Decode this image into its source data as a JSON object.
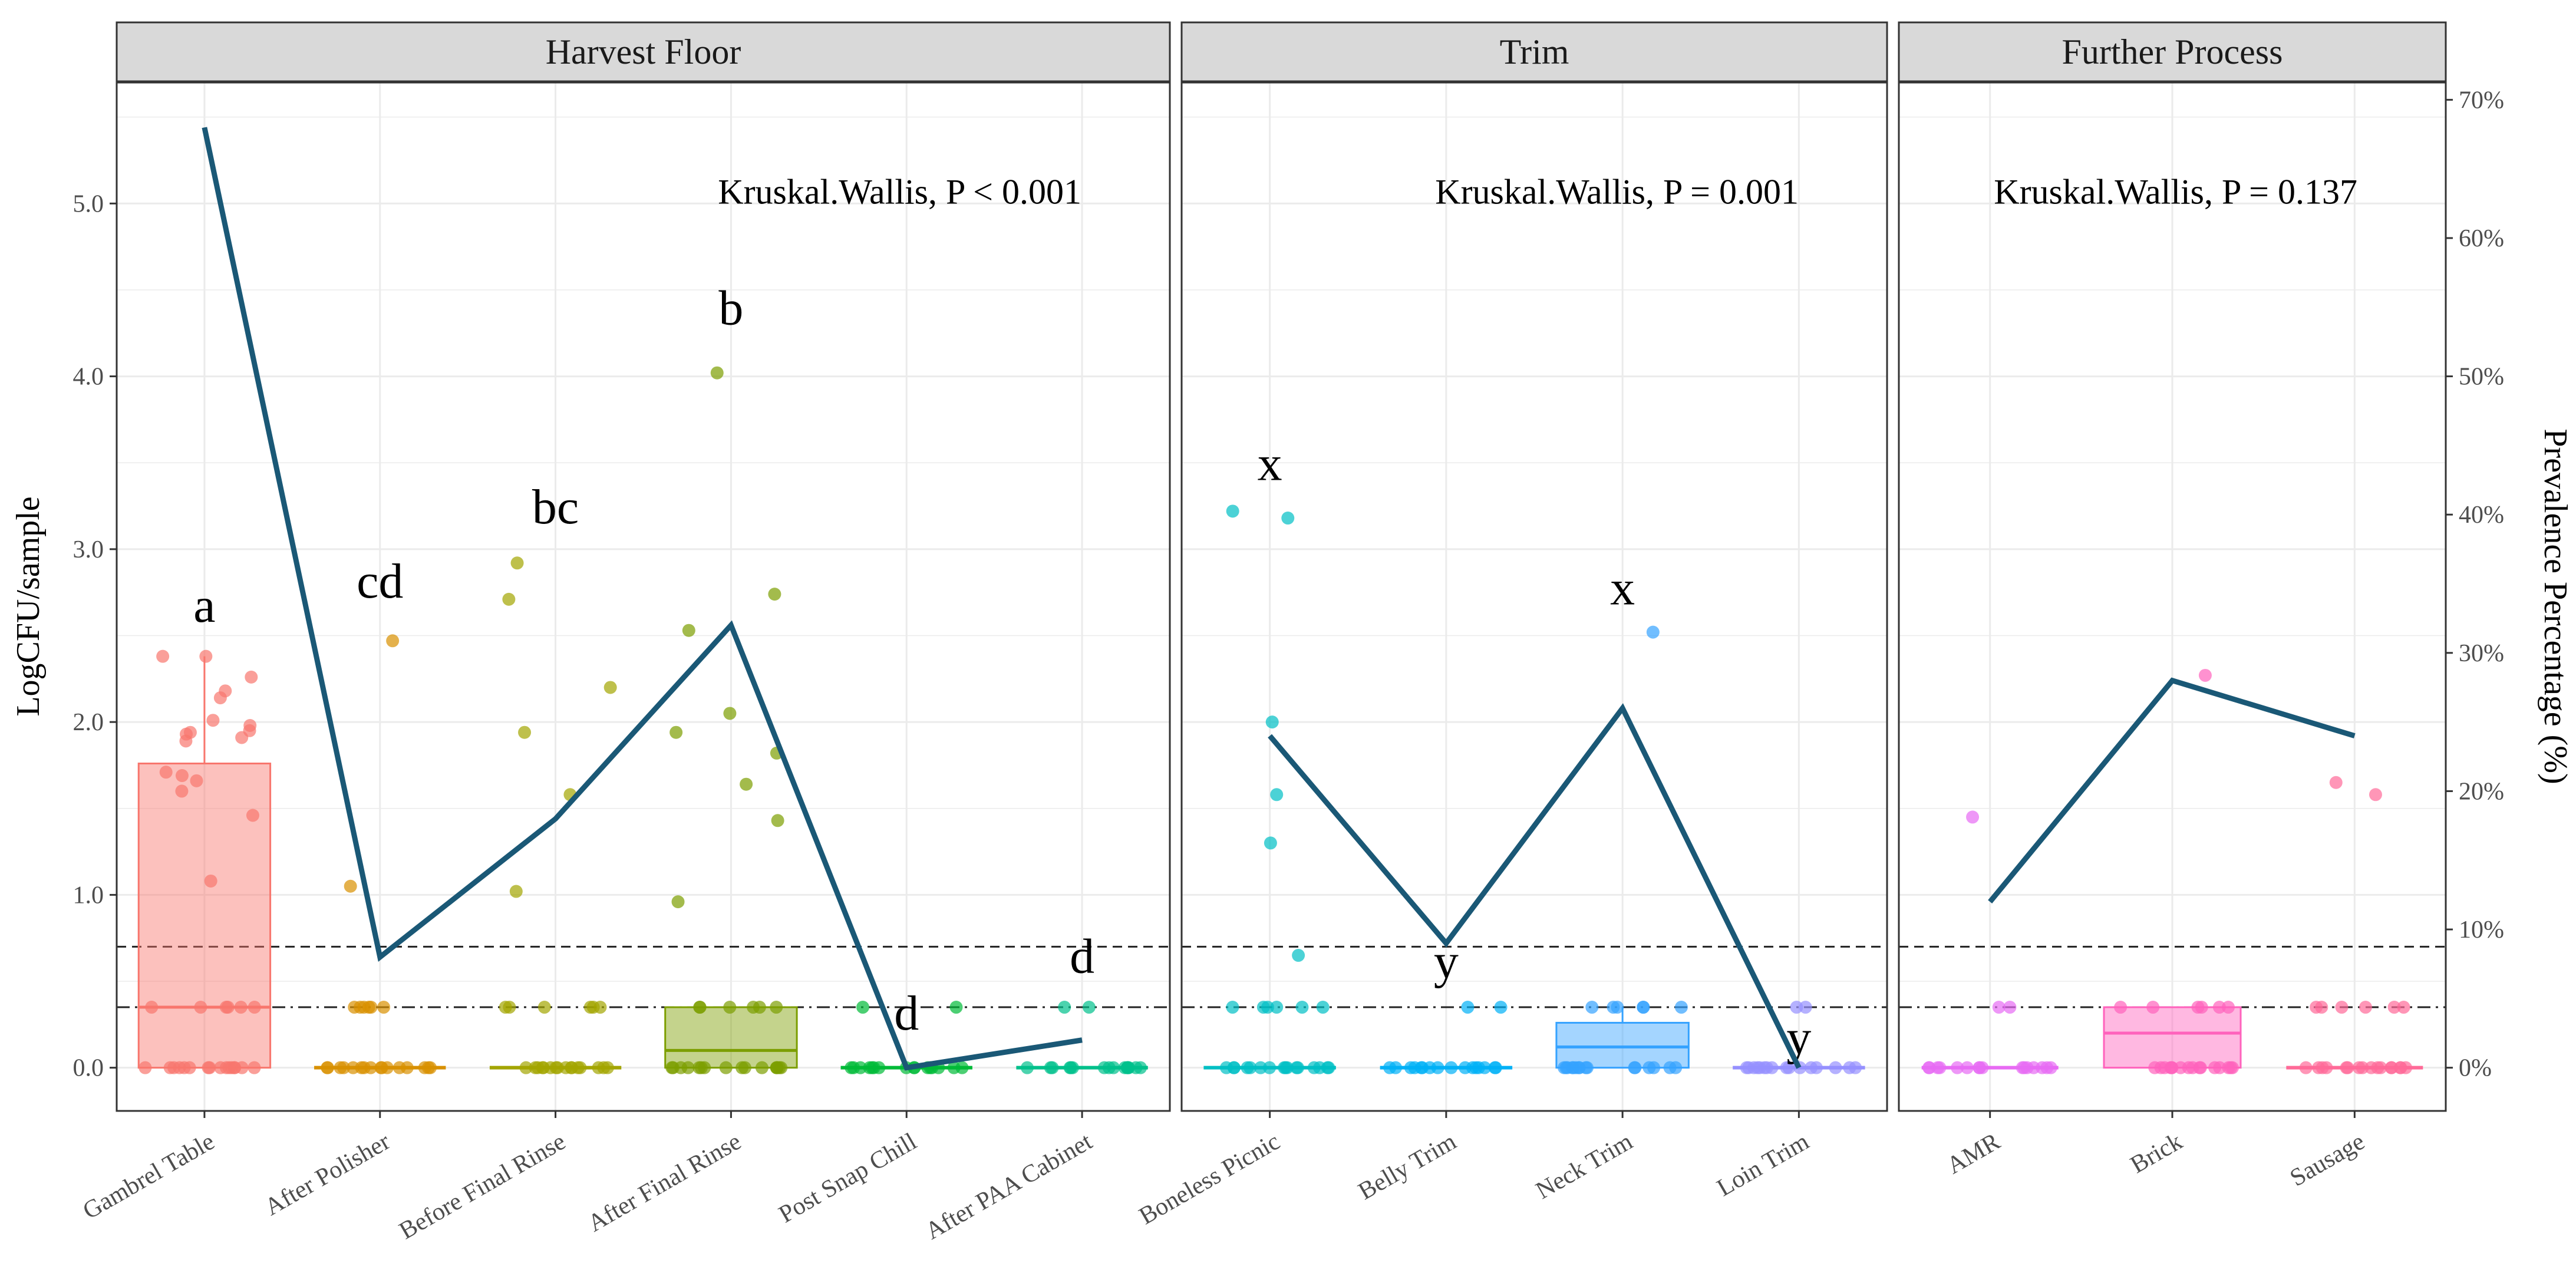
{
  "chart_data": {
    "type": "box_jitter_with_line",
    "y_left_label": "LogCFU/sample",
    "y_right_label": "Prevalence Percentage (%)",
    "y_left_ticks": [
      "0.0",
      "1.0",
      "2.0",
      "3.0",
      "4.0",
      "5.0"
    ],
    "y_right_ticks": [
      "0%",
      "10%",
      "20%",
      "30%",
      "40%",
      "50%",
      "60%",
      "70%"
    ],
    "ylim_left": [
      -0.25,
      5.7
    ],
    "right_axis_scale": "70% corresponds to 5.6 LogCFU/sample",
    "reference_lines": [
      {
        "style": "dashed",
        "value": 0.7
      },
      {
        "style": "dotdash",
        "value": 0.35
      }
    ],
    "panels": [
      {
        "title": "Harvest Floor",
        "annotation": "Kruskal.Wallis, P < 0.001",
        "categories": [
          {
            "label": "Gambrel Table",
            "color": "#F8766D",
            "box": [
              0,
              0,
              0.35,
              1.76
            ],
            "whisker_max": 2.38,
            "letter": "a",
            "letter_y": 2.58,
            "points": [
              2.38,
              2.38,
              2.26,
              2.18,
              2.14,
              2.01,
              1.98,
              1.95,
              1.94,
              1.93,
              1.91,
              1.89,
              1.71,
              1.69,
              1.66,
              1.6,
              1.46,
              1.08
            ]
          },
          {
            "label": "After Polisher",
            "color": "#D89000",
            "box": [
              0,
              0,
              0,
              0
            ],
            "whisker_max": 0,
            "letter": "cd",
            "letter_y": 2.72,
            "points": [
              2.47,
              1.05
            ]
          },
          {
            "label": "Before Final Rinse",
            "color": "#A3A500",
            "box": [
              0,
              0,
              0,
              0
            ],
            "whisker_max": 0,
            "letter": "bc",
            "letter_y": 3.15,
            "points": [
              2.92,
              2.71,
              2.2,
              1.94,
              1.58,
              1.02
            ]
          },
          {
            "label": "After Final Rinse",
            "color": "#7C9E00",
            "box": [
              0,
              0,
              0.1,
              0.35
            ],
            "whisker_max": 0.35,
            "letter": "b",
            "letter_y": 4.3,
            "points": [
              4.02,
              2.74,
              2.53,
              2.05,
              1.94,
              1.82,
              1.64,
              1.43,
              0.96
            ]
          },
          {
            "label": "Post Snap Chill",
            "color": "#00BA38",
            "box": [
              0,
              0,
              0,
              0
            ],
            "whisker_max": 0,
            "letter": "d",
            "letter_y": 0.22,
            "points": []
          },
          {
            "label": "After PAA Cabinet",
            "color": "#00C08B",
            "box": [
              0,
              0,
              0,
              0
            ],
            "whisker_max": 0,
            "letter": "d",
            "letter_y": 0.55,
            "points": []
          }
        ],
        "prevalence": [
          0.68,
          0.08,
          0.18,
          0.32,
          0.0,
          0.02
        ]
      },
      {
        "title": "Trim",
        "annotation": "Kruskal.Wallis, P = 0.001",
        "categories": [
          {
            "label": "Boneless Picnic",
            "color": "#00BFC4",
            "box": [
              0,
              0,
              0,
              0
            ],
            "whisker_max": 0,
            "letter": "x",
            "letter_y": 3.4,
            "points": [
              3.22,
              3.18,
              2.0,
              1.58,
              1.3,
              0.65
            ]
          },
          {
            "label": "Belly Trim",
            "color": "#00B0F6",
            "box": [
              0,
              0,
              0,
              0
            ],
            "whisker_max": 0,
            "letter": "y",
            "letter_y": 0.52,
            "points": []
          },
          {
            "label": "Neck Trim",
            "color": "#35A2FF",
            "box": [
              0,
              0,
              0.12,
              0.26
            ],
            "whisker_max": 0.35,
            "letter": "x",
            "letter_y": 2.68,
            "points": [
              2.52
            ]
          },
          {
            "label": "Loin Trim",
            "color": "#9590FF",
            "box": [
              0,
              0,
              0,
              0
            ],
            "whisker_max": 0,
            "letter": "y",
            "letter_y": 0.08,
            "points": []
          }
        ],
        "prevalence": [
          0.24,
          0.09,
          0.26,
          0.0
        ]
      },
      {
        "title": "Further Process",
        "annotation": "Kruskal.Wallis, P = 0.137",
        "categories": [
          {
            "label": "AMR",
            "color": "#E76BF3",
            "box": [
              0,
              0,
              0,
              0
            ],
            "whisker_max": 0,
            "letter": "",
            "letter_y": 0,
            "points": [
              1.45
            ]
          },
          {
            "label": "Brick",
            "color": "#FF62BC",
            "box": [
              0,
              0,
              0.2,
              0.35
            ],
            "whisker_max": 0.35,
            "letter": "",
            "letter_y": 0,
            "points": [
              2.27
            ]
          },
          {
            "label": "Sausage",
            "color": "#FF6A98",
            "box": [
              0,
              0,
              0,
              0
            ],
            "whisker_max": 0,
            "letter": "",
            "letter_y": 0,
            "points": [
              1.65,
              1.58
            ]
          }
        ],
        "prevalence": [
          0.12,
          0.28,
          0.24
        ]
      }
    ],
    "line_color": "#1A5876"
  }
}
